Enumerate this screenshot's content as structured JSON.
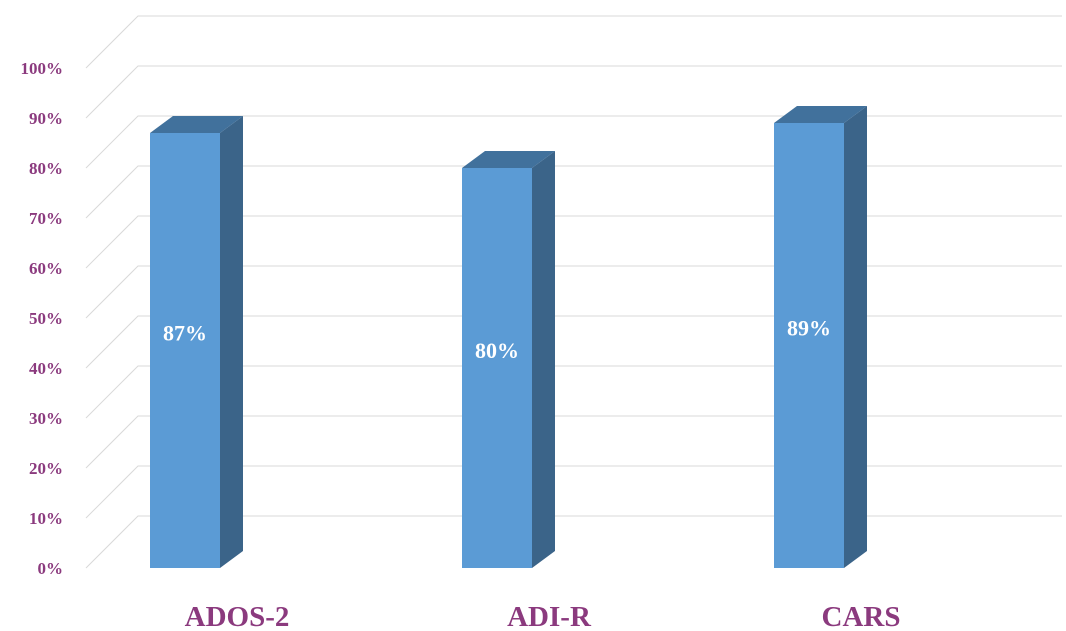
{
  "chart_data": {
    "type": "bar",
    "categories": [
      "ADOS-2",
      "ADI-R",
      "CARS"
    ],
    "values": [
      87,
      80,
      89
    ],
    "data_labels": [
      "87%",
      "80%",
      "89%"
    ],
    "title": "",
    "xlabel": "",
    "ylabel": "",
    "ylim": [
      0,
      100
    ],
    "yticks": [
      "0%",
      "10%",
      "20%",
      "30%",
      "40%",
      "50%",
      "60%",
      "70%",
      "80%",
      "90%",
      "100%"
    ],
    "grid": true,
    "style": "3d-column"
  },
  "colors": {
    "bar_front": "#5b9bd5",
    "bar_side": "#3b6489",
    "bar_top": "#41719c",
    "tick_text": "#8b3a7e",
    "grid": "#d9d9d9"
  }
}
